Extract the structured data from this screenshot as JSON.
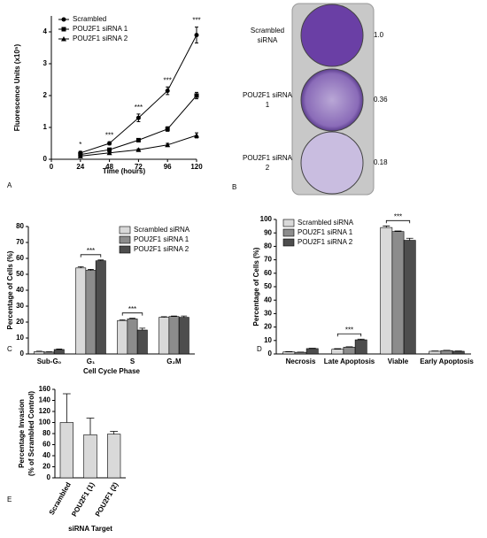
{
  "chart_data": [
    {
      "type": "line",
      "panel": "A",
      "xlabel": "Time (hours)",
      "ylabel": "Fluorescence Units (x10⁵)",
      "x": [
        24,
        48,
        72,
        96,
        120
      ],
      "series": [
        {
          "name": "Scrambled",
          "color": "#000000",
          "marker": "circle",
          "values": [
            0.2,
            0.5,
            1.3,
            2.15,
            3.9
          ],
          "errors": [
            0.05,
            0.05,
            0.12,
            0.12,
            0.25
          ]
        },
        {
          "name": "POU2F1 siRNA 1",
          "color": "#000000",
          "marker": "square",
          "values": [
            0.15,
            0.3,
            0.6,
            0.95,
            2.0
          ],
          "errors": [
            0.03,
            0.04,
            0.05,
            0.07,
            0.1
          ]
        },
        {
          "name": "POU2F1 siRNA 2",
          "color": "#000000",
          "marker": "triangle",
          "values": [
            0.1,
            0.2,
            0.3,
            0.45,
            0.75
          ],
          "errors": [
            0.02,
            0.03,
            0.03,
            0.05,
            0.08
          ]
        }
      ],
      "xlim": [
        0,
        120
      ],
      "xticks": [
        0,
        24,
        48,
        72,
        96,
        120
      ],
      "ylim": [
        0,
        4.5
      ],
      "yticks": [
        0,
        1,
        2,
        3,
        4
      ],
      "legend": "upper left",
      "annotations": [
        {
          "text": "*",
          "x": 24
        },
        {
          "text": "***",
          "x": 48
        },
        {
          "text": "***",
          "x": 72
        },
        {
          "text": "***",
          "x": 96
        },
        {
          "text": "***",
          "x": 120
        }
      ]
    },
    {
      "type": "bar",
      "panel": "C",
      "xlabel": "Cell Cycle Phase",
      "ylabel": "Percentage of Cells (%)",
      "categories": [
        "Sub-G₀",
        "G₁",
        "S",
        "G₂M"
      ],
      "series": [
        {
          "name": "Scrambled siRNA",
          "color": "#d9d9d9",
          "values": [
            1.5,
            54,
            21,
            23
          ],
          "errors": [
            0.2,
            0.8,
            0.4,
            0.4
          ]
        },
        {
          "name": "POU2F1 siRNA 1",
          "color": "#8c8c8c",
          "values": [
            1.2,
            52.5,
            22,
            23.5
          ],
          "errors": [
            0.2,
            0.6,
            0.4,
            0.3
          ]
        },
        {
          "name": "POU2F1 siRNA 2",
          "color": "#4d4d4d",
          "values": [
            2.8,
            58.5,
            15,
            23
          ],
          "errors": [
            0.3,
            0.5,
            1.2,
            0.8
          ]
        }
      ],
      "ylim": [
        0,
        80
      ],
      "yticks": [
        0,
        10,
        20,
        30,
        40,
        50,
        60,
        70,
        80
      ],
      "legend": "upper right",
      "annotations": [
        {
          "text": "***",
          "category": "G₁"
        },
        {
          "text": "***",
          "category": "S"
        }
      ]
    },
    {
      "type": "bar",
      "panel": "D",
      "ylabel": "Percentage of Cells (%)",
      "categories": [
        "Necrosis",
        "Late Apoptosis",
        "Viable",
        "Early Apoptosis"
      ],
      "series": [
        {
          "name": "Scrambled siRNA",
          "color": "#d9d9d9",
          "values": [
            1.5,
            3.5,
            94,
            2
          ],
          "errors": [
            0.2,
            0.4,
            1.2,
            0.2
          ]
        },
        {
          "name": "POU2F1 siRNA 1",
          "color": "#8c8c8c",
          "values": [
            1.2,
            5,
            91,
            2.5
          ],
          "errors": [
            0.2,
            0.3,
            0.4,
            0.2
          ]
        },
        {
          "name": "POU2F1 siRNA 2",
          "color": "#4d4d4d",
          "values": [
            4,
            10.5,
            84.5,
            2
          ],
          "errors": [
            0.3,
            0.5,
            1.5,
            0.2
          ]
        }
      ],
      "ylim": [
        0,
        100
      ],
      "yticks": [
        0,
        10,
        20,
        30,
        40,
        50,
        60,
        70,
        80,
        90,
        100
      ],
      "legend": "upper left",
      "annotations": [
        {
          "text": "***",
          "category": "Late Apoptosis"
        },
        {
          "text": "***",
          "category": "Viable"
        }
      ]
    },
    {
      "type": "bar",
      "panel": "E",
      "xlabel": "siRNA Target",
      "ylabel": "Percentage Invasion (% of Scrambled Control)",
      "categories": [
        "Scrambled",
        "POU2F1 (1)",
        "POU2F1 (2)"
      ],
      "series": [
        {
          "color": "#d9d9d9",
          "values": [
            100,
            78,
            79
          ],
          "errors": [
            52,
            30,
            5
          ]
        }
      ],
      "ylim": [
        0,
        160
      ],
      "yticks": [
        0,
        20,
        40,
        60,
        80,
        100,
        120,
        140,
        160
      ]
    }
  ],
  "panel_b": {
    "label": "B",
    "rows": [
      {
        "name": "Scrambled siRNA",
        "value": "1.0"
      },
      {
        "name": "POU2F1 siRNA 1",
        "value": "0.36"
      },
      {
        "name": "POU2F1 siRNA 2",
        "value": "0.18"
      }
    ]
  }
}
